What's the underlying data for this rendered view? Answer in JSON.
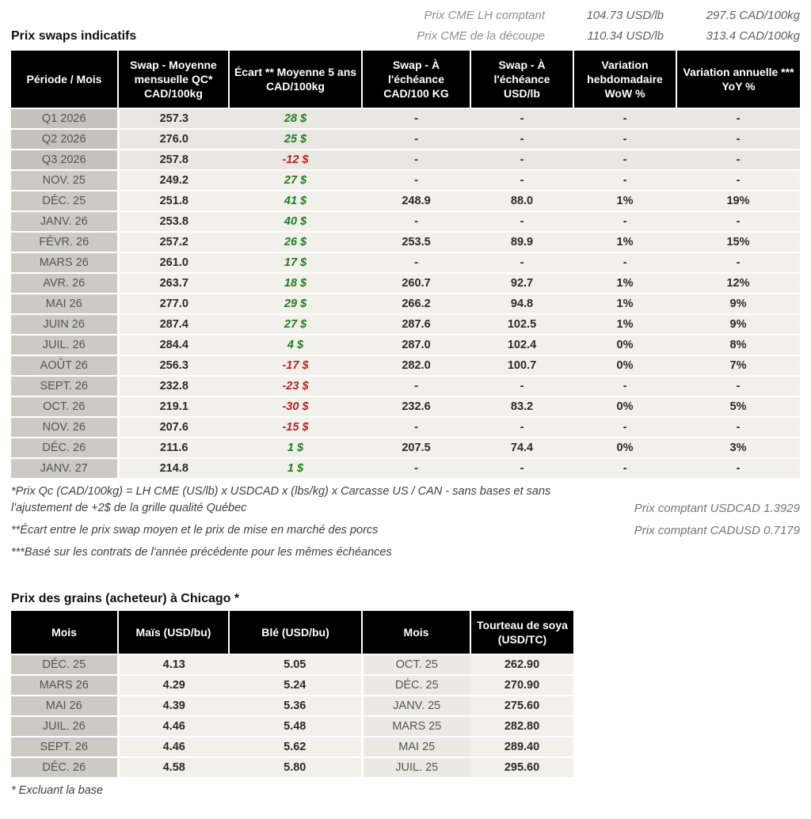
{
  "cme": {
    "lh": {
      "label": "Prix CME LH comptant",
      "usd": "104.73 USD/lb",
      "cad": "297.5 CAD/100kg"
    },
    "cutout": {
      "label": "Prix CME de la découpe",
      "usd": "110.34 USD/lb",
      "cad": "313.4 CAD/100kg"
    }
  },
  "swaps": {
    "title": "Prix swaps indicatifs",
    "columns": [
      "Période / Mois",
      "Swap - Moyenne mensuelle QC* CAD/100kg",
      "Écart ** Moyenne 5 ans CAD/100kg",
      "Swap - À l'échéance CAD/100 KG",
      "Swap - À l'échéance USD/lb",
      "Variation hebdomadaire WoW %",
      "Variation annuelle *** YoY %"
    ],
    "rows": [
      {
        "period": "Q1 2026",
        "swap_avg": "257.3",
        "ecart": "28 $",
        "ecart_color": "green",
        "maturity_cad": "-",
        "maturity_usd": "-",
        "wow": "-",
        "wow_color": "green",
        "yoy": "-",
        "yoy_color": "green",
        "quarter": true
      },
      {
        "period": "Q2 2026",
        "swap_avg": "276.0",
        "ecart": "25 $",
        "ecart_color": "green",
        "maturity_cad": "-",
        "maturity_usd": "-",
        "wow": "-",
        "wow_color": "green",
        "yoy": "-",
        "yoy_color": "green",
        "quarter": true
      },
      {
        "period": "Q3 2026",
        "swap_avg": "257.8",
        "ecart": "-12 $",
        "ecart_color": "red",
        "maturity_cad": "-",
        "maturity_usd": "-",
        "wow": "-",
        "wow_color": "green",
        "yoy": "-",
        "yoy_color": "green",
        "quarter": true
      },
      {
        "period": "NOV. 25",
        "swap_avg": "249.2",
        "ecart": "27 $",
        "ecart_color": "green",
        "maturity_cad": "-",
        "maturity_usd": "-",
        "wow": "-",
        "wow_color": "green",
        "yoy": "-",
        "yoy_color": "green",
        "quarter": false
      },
      {
        "period": "DÉC. 25",
        "swap_avg": "251.8",
        "ecart": "41 $",
        "ecart_color": "green",
        "maturity_cad": "248.9",
        "maturity_usd": "88.0",
        "wow": "1%",
        "wow_color": "green",
        "yoy": "19%",
        "yoy_color": "green",
        "quarter": false
      },
      {
        "period": "JANV. 26",
        "swap_avg": "253.8",
        "ecart": "40 $",
        "ecart_color": "green",
        "maturity_cad": "-",
        "maturity_usd": "-",
        "wow": "-",
        "wow_color": "green",
        "yoy": "-",
        "yoy_color": "green",
        "quarter": false
      },
      {
        "period": "FÉVR. 26",
        "swap_avg": "257.2",
        "ecart": "26 $",
        "ecart_color": "green",
        "maturity_cad": "253.5",
        "maturity_usd": "89.9",
        "wow": "1%",
        "wow_color": "green",
        "yoy": "15%",
        "yoy_color": "green",
        "quarter": false
      },
      {
        "period": "MARS 26",
        "swap_avg": "261.0",
        "ecart": "17 $",
        "ecart_color": "green",
        "maturity_cad": "-",
        "maturity_usd": "-",
        "wow": "-",
        "wow_color": "green",
        "yoy": "-",
        "yoy_color": "green",
        "quarter": false
      },
      {
        "period": "AVR. 26",
        "swap_avg": "263.7",
        "ecart": "18 $",
        "ecart_color": "green",
        "maturity_cad": "260.7",
        "maturity_usd": "92.7",
        "wow": "1%",
        "wow_color": "green",
        "yoy": "12%",
        "yoy_color": "green",
        "quarter": false
      },
      {
        "period": "MAI 26",
        "swap_avg": "277.0",
        "ecart": "29 $",
        "ecart_color": "green",
        "maturity_cad": "266.2",
        "maturity_usd": "94.8",
        "wow": "1%",
        "wow_color": "green",
        "yoy": "9%",
        "yoy_color": "green",
        "quarter": false
      },
      {
        "period": "JUIN 26",
        "swap_avg": "287.4",
        "ecart": "27 $",
        "ecart_color": "green",
        "maturity_cad": "287.6",
        "maturity_usd": "102.5",
        "wow": "1%",
        "wow_color": "green",
        "yoy": "9%",
        "yoy_color": "green",
        "quarter": false
      },
      {
        "period": "JUIL. 26",
        "swap_avg": "284.4",
        "ecart": "4 $",
        "ecart_color": "green",
        "maturity_cad": "287.0",
        "maturity_usd": "102.4",
        "wow": "0%",
        "wow_color": "green",
        "yoy": "8%",
        "yoy_color": "green",
        "quarter": false
      },
      {
        "period": "AOÛT 26",
        "swap_avg": "256.3",
        "ecart": "-17 $",
        "ecart_color": "red",
        "maturity_cad": "282.0",
        "maturity_usd": "100.7",
        "wow": "0%",
        "wow_color": "green",
        "yoy": "7%",
        "yoy_color": "green",
        "quarter": false
      },
      {
        "period": "SEPT. 26",
        "swap_avg": "232.8",
        "ecart": "-23 $",
        "ecart_color": "red",
        "maturity_cad": "-",
        "maturity_usd": "-",
        "wow": "-",
        "wow_color": "green",
        "yoy": "-",
        "yoy_color": "green",
        "quarter": false
      },
      {
        "period": "OCT. 26",
        "swap_avg": "219.1",
        "ecart": "-30 $",
        "ecart_color": "red",
        "maturity_cad": "232.6",
        "maturity_usd": "83.2",
        "wow": "0%",
        "wow_color": "green",
        "yoy": "5%",
        "yoy_color": "green",
        "quarter": false
      },
      {
        "period": "NOV. 26",
        "swap_avg": "207.6",
        "ecart": "-15 $",
        "ecart_color": "red",
        "maturity_cad": "-",
        "maturity_usd": "-",
        "wow": "-",
        "wow_color": "green",
        "yoy": "-",
        "yoy_color": "green",
        "quarter": false
      },
      {
        "period": "DÉC. 26",
        "swap_avg": "211.6",
        "ecart": "1 $",
        "ecart_color": "green",
        "maturity_cad": "207.5",
        "maturity_usd": "74.4",
        "wow": "0%",
        "wow_color": "red",
        "yoy": "3%",
        "yoy_color": "green",
        "quarter": false
      },
      {
        "period": "JANV. 27",
        "swap_avg": "214.8",
        "ecart": "1 $",
        "ecart_color": "green",
        "maturity_cad": "-",
        "maturity_usd": "-",
        "wow": "-",
        "wow_color": "green",
        "yoy": "-",
        "yoy_color": "green",
        "quarter": false
      }
    ],
    "footnotes": [
      "*Prix Qc (CAD/100kg) = LH CME (US/lb) x USDCAD x (lbs/kg) x Carcasse US / CAN - sans bases et sans l'ajustement de +2$ de la grille qualité Québec",
      "**Écart entre le prix swap moyen et le prix de mise en marché des porcs",
      "***Basé sur les contrats de l'année précédente pour les mêmes échéances"
    ],
    "spot_rates": [
      "Prix comptant USDCAD 1.3929",
      "Prix comptant CADUSD 0.7179"
    ]
  },
  "grains": {
    "title": "Prix des grains (acheteur) à Chicago *",
    "columns": [
      "Mois",
      "Maïs (USD/bu)",
      "Blé (USD/bu)",
      "Mois",
      "Tourteau de soya (USD/TC)"
    ],
    "rows": [
      {
        "month1": "DÉC. 25",
        "corn": "4.13",
        "wheat": "5.05",
        "month2": "OCT. 25",
        "soy": "262.90"
      },
      {
        "month1": "MARS 26",
        "corn": "4.29",
        "wheat": "5.24",
        "month2": "DÉC. 25",
        "soy": "270.90"
      },
      {
        "month1": "MAI 26",
        "corn": "4.39",
        "wheat": "5.36",
        "month2": "JANV. 25",
        "soy": "275.60"
      },
      {
        "month1": "JUIL. 26",
        "corn": "4.46",
        "wheat": "5.48",
        "month2": "MARS 25",
        "soy": "282.80"
      },
      {
        "month1": "SEPT. 26",
        "corn": "4.46",
        "wheat": "5.62",
        "month2": "MAI 25",
        "soy": "289.40"
      },
      {
        "month1": "DÉC. 26",
        "corn": "4.58",
        "wheat": "5.80",
        "month2": "JUIL. 25",
        "soy": "295.60"
      }
    ],
    "footnote": "* Excluant la base"
  },
  "colors": {
    "green": "#1e7d1e",
    "red": "#b92020",
    "header_bg": "#000000",
    "month_col_bg": "#cccac5",
    "data_bg": "#f2f0ea"
  }
}
